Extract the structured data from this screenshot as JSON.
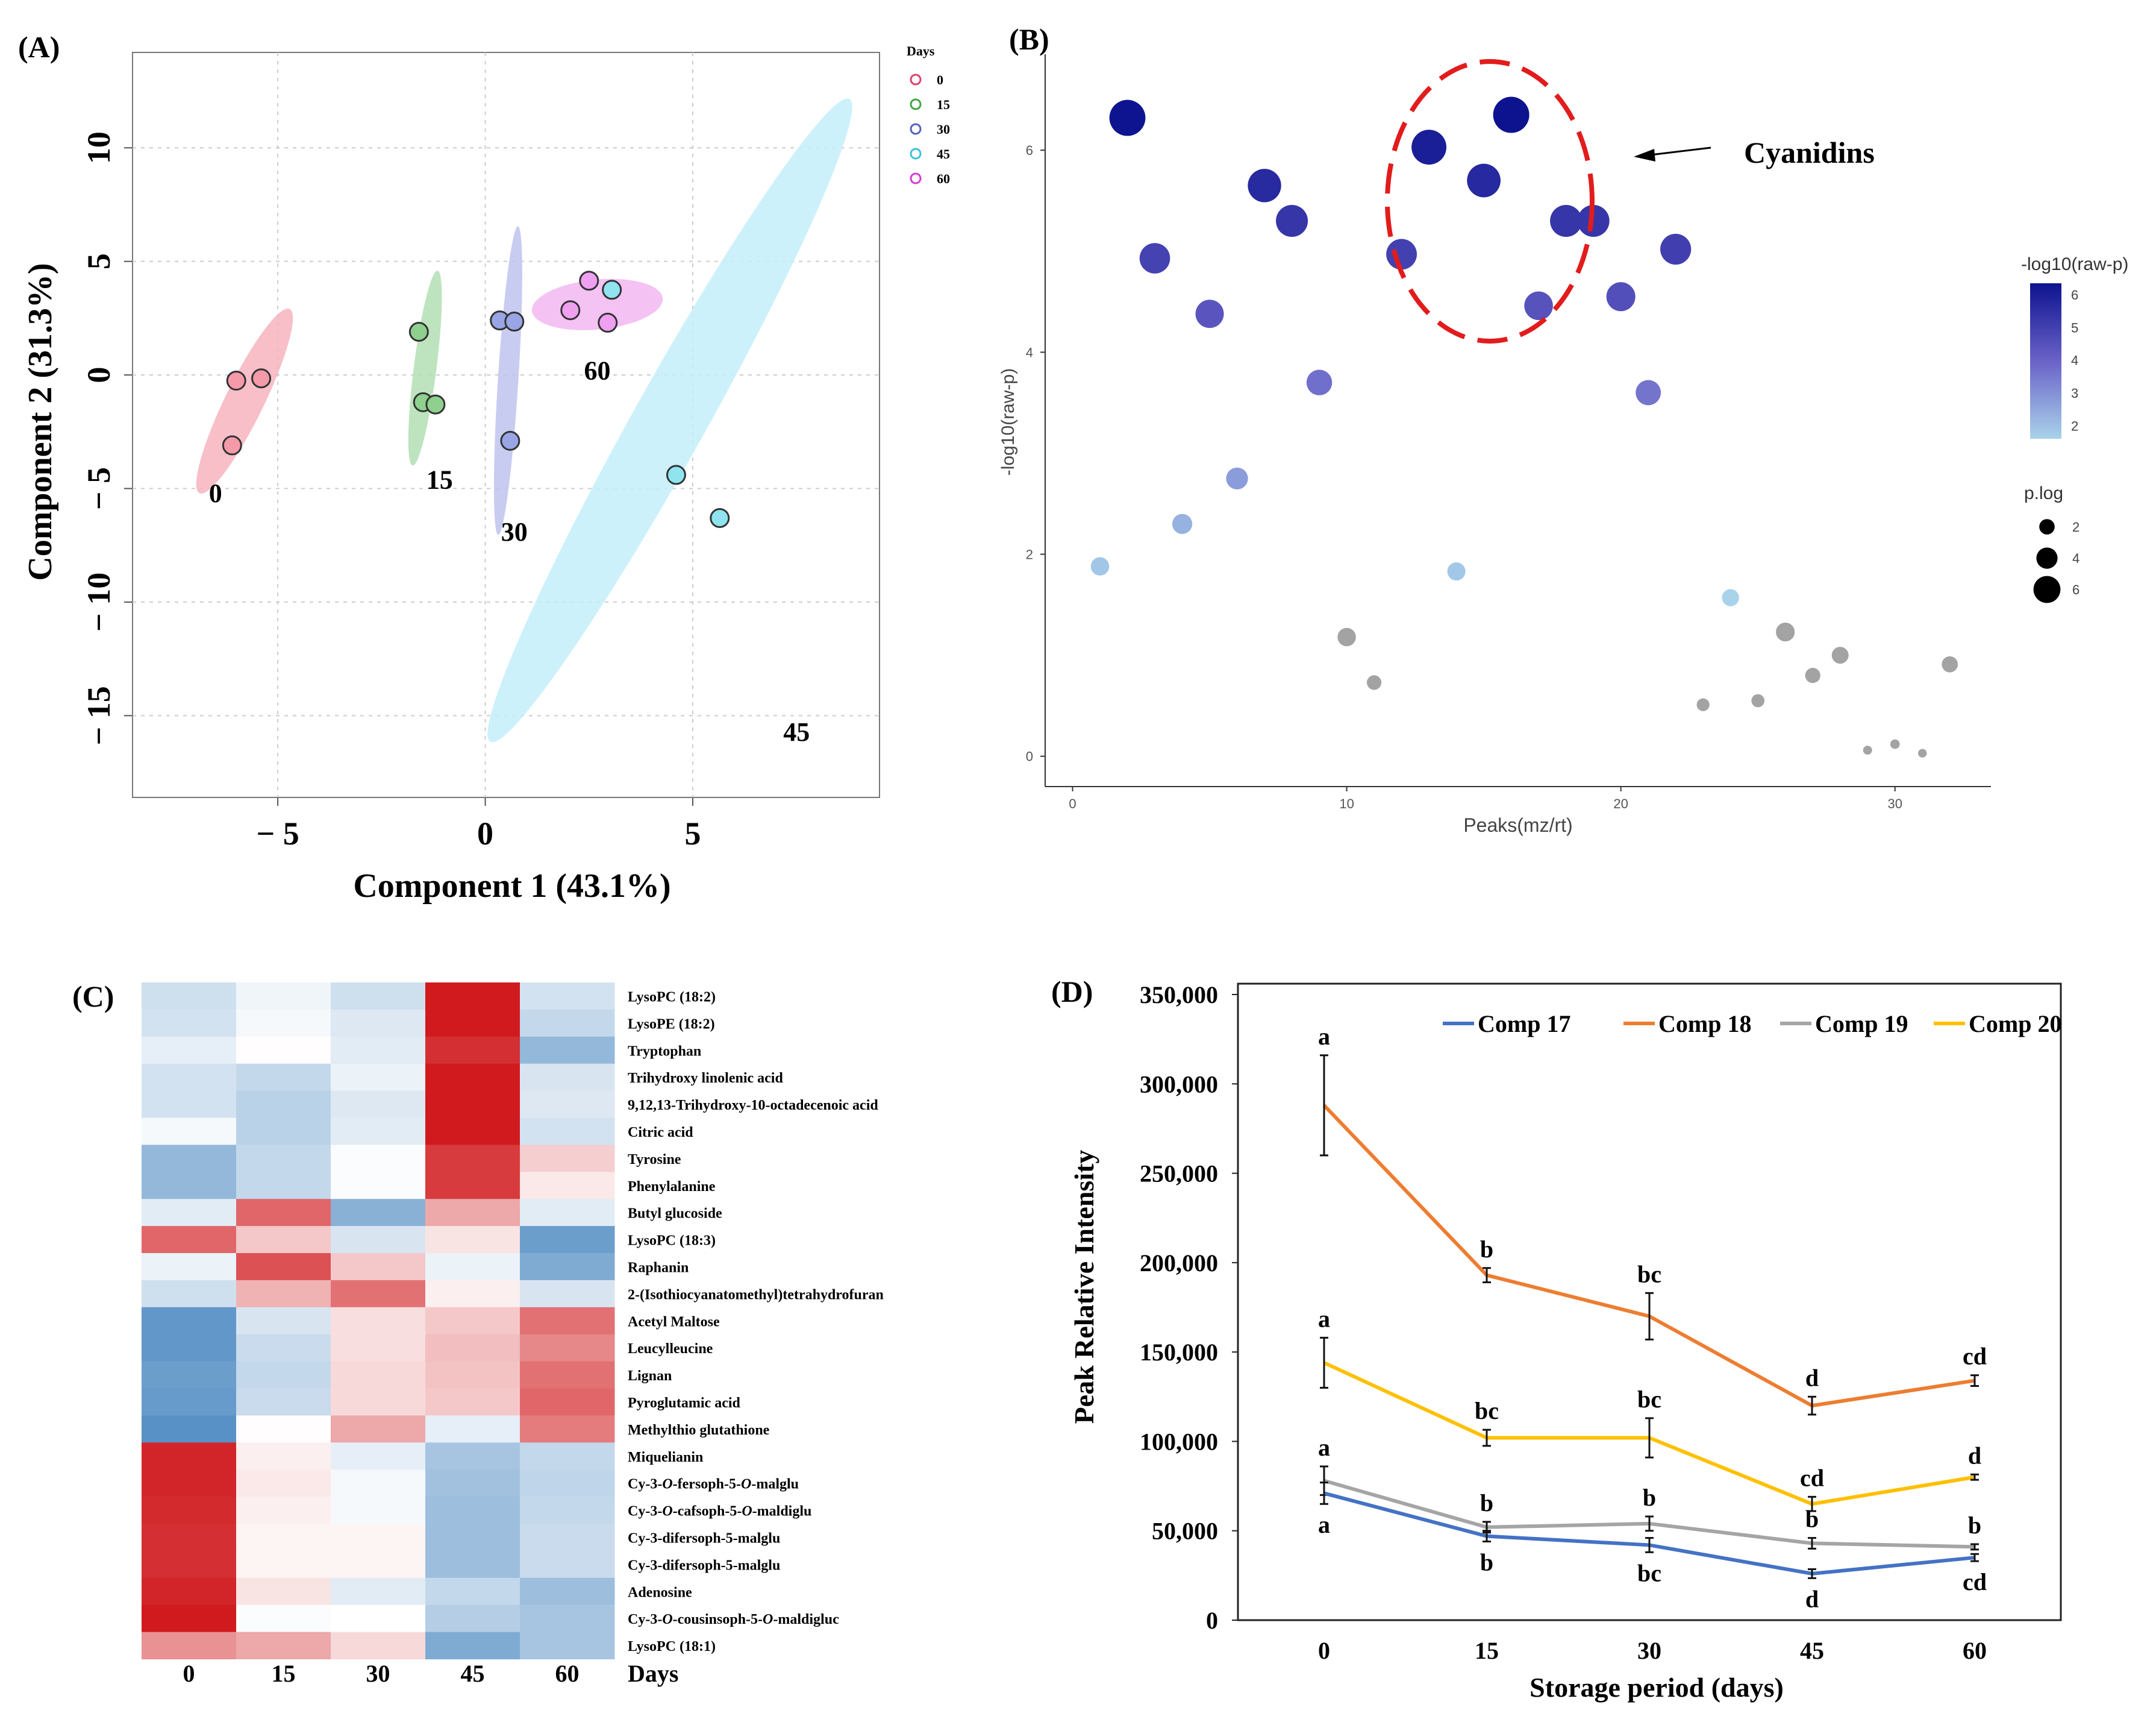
{
  "chart_data": [
    {
      "panel": "(A)",
      "type": "scatter",
      "xlabel": "Component 1 (43.1%)",
      "ylabel": "Component 2 (31.3%)",
      "xlim": [
        -8.5,
        9.5
      ],
      "ylim": [
        -18.6,
        14.2
      ],
      "xticks": [
        -5,
        0,
        5
      ],
      "xtick_labels": [
        "− 5",
        "0",
        "5"
      ],
      "yticks": [
        -15,
        -10,
        -5,
        0,
        5,
        10
      ],
      "ytick_labels": [
        "− 15",
        "− 10",
        "− 5",
        "0",
        "5",
        "10"
      ],
      "legend_title": "Days",
      "groups": [
        {
          "name": "0",
          "label": "0",
          "color": "#e0406a",
          "fill": "#f59aa9",
          "ellipse_fill": "#f7b4c0",
          "points": [
            [
              -6.0,
              -0.25
            ],
            [
              -5.4,
              -0.15
            ],
            [
              -6.1,
              -3.1
            ]
          ],
          "ellipse": {
            "cx": -5.8,
            "cy": -1.15,
            "rx": 4.2,
            "ry": 0.85,
            "angle": 75
          },
          "label_pos": [
            -6.5,
            -5.6
          ]
        },
        {
          "name": "15",
          "label": "15",
          "color": "#3fa648",
          "fill": "#8fd08f",
          "ellipse_fill": "#b3dfb4",
          "points": [
            [
              -1.6,
              1.9
            ],
            [
              -1.5,
              -1.2
            ],
            [
              -1.2,
              -1.3
            ]
          ],
          "ellipse": {
            "cx": -1.45,
            "cy": 0.3,
            "rx": 4.3,
            "ry": 0.5,
            "angle": 86
          },
          "label_pos": [
            -1.1,
            -5.0
          ]
        },
        {
          "name": "30",
          "label": "30",
          "color": "#5560c0",
          "fill": "#9aa5e5",
          "ellipse_fill": "#bfc3ee",
          "points": [
            [
              0.35,
              2.4
            ],
            [
              0.7,
              2.35
            ],
            [
              0.6,
              -2.9
            ]
          ],
          "ellipse": {
            "cx": 0.55,
            "cy": -0.25,
            "rx": 6.8,
            "ry": 0.45,
            "angle": 88
          },
          "label_pos": [
            0.7,
            -7.3
          ]
        },
        {
          "name": "45",
          "label": "45",
          "color": "#3cc2d6",
          "fill": "#8fe4ef",
          "ellipse_fill": "#c4effa",
          "points": [
            [
              3.05,
              3.75
            ],
            [
              4.6,
              -4.4
            ],
            [
              5.65,
              -6.3
            ]
          ],
          "ellipse": {
            "cx": 4.45,
            "cy": -2.0,
            "rx": 14.8,
            "ry": 1.6,
            "angle": 73
          },
          "label_pos": [
            7.5,
            -16.1
          ]
        },
        {
          "name": "60",
          "label": "60",
          "color": "#d63ad6",
          "fill": "#f0a0f0",
          "ellipse_fill": "#f3b7f2",
          "points": [
            [
              2.5,
              4.15
            ],
            [
              2.05,
              2.85
            ],
            [
              2.95,
              2.3
            ]
          ],
          "ellipse": {
            "cx": 2.7,
            "cy": 3.1,
            "rx": 1.6,
            "ry": 1.1,
            "angle": 10
          },
          "label_pos": [
            2.7,
            -0.2
          ]
        }
      ]
    },
    {
      "panel": "(B)",
      "type": "scatter",
      "xlabel": "Peaks(mz/rt)",
      "ylabel": "-log10(raw-p)",
      "xlim": [
        -1,
        33.5
      ],
      "ylim": [
        -0.3,
        6.95
      ],
      "xticks": [
        0,
        10,
        20,
        30
      ],
      "yticks": [
        0,
        2,
        4,
        6
      ],
      "annotation": "Cyanidins",
      "legend_color_title": "-log10(raw-p)",
      "legend_color_ticks": [
        2,
        3,
        4,
        5,
        6
      ],
      "legend_size_title": "p.log",
      "legend_size_values": [
        2,
        4,
        6
      ],
      "points": [
        [
          1,
          1.88
        ],
        [
          2,
          6.32
        ],
        [
          3,
          4.93
        ],
        [
          4,
          2.3
        ],
        [
          5,
          4.38
        ],
        [
          6,
          2.75
        ],
        [
          7,
          5.65
        ],
        [
          8,
          5.3
        ],
        [
          9,
          3.7
        ],
        [
          10,
          1.18
        ],
        [
          11,
          0.73
        ],
        [
          12,
          4.97
        ],
        [
          13,
          6.03
        ],
        [
          14,
          1.83
        ],
        [
          15,
          5.7
        ],
        [
          16,
          6.35
        ],
        [
          17,
          4.46
        ],
        [
          18,
          5.3
        ],
        [
          19,
          5.3
        ],
        [
          20,
          4.55
        ],
        [
          21,
          3.6
        ],
        [
          22,
          5.02
        ],
        [
          23,
          0.51
        ],
        [
          24,
          1.57
        ],
        [
          25,
          0.55
        ],
        [
          26,
          1.23
        ],
        [
          27,
          0.8
        ],
        [
          28,
          1.0
        ],
        [
          29,
          0.06
        ],
        [
          30,
          0.12
        ],
        [
          31,
          0.03
        ],
        [
          32,
          0.91
        ]
      ]
    },
    {
      "panel": "(C)",
      "type": "heatmap",
      "columns": [
        "0",
        "15",
        "30",
        "45",
        "60"
      ],
      "x_axis_label": "Days",
      "rows": [
        "LysoPC (18:2)",
        "LysoPE (18:2)",
        "Tryptophan",
        "Trihydroxy linolenic acid",
        "9,12,13-Trihydroxy-10-octadecenoic acid",
        "Citric acid",
        "Tyrosine",
        "Phenylalanine",
        "Butyl glucoside",
        "LysoPC (18:3)",
        "Raphanin",
        "2-(Isothiocyanatomethyl)tetrahydrofuran",
        "Acetyl Maltose",
        "Leucylleucine",
        "Lignan",
        "Pyroglutamic acid",
        "Methylthio glutathione",
        "Miquelianin",
        "Cy-3-O-fersoph-5-O-malglu",
        "Cy-3-O-cafsoph-5-O-maldiglu",
        "Cy-3-difersoph-5-malglu",
        "Cy-3-difersoph-5-malglu",
        "Adenosine",
        "Cy-3-O-cousinsoph-5-O-maldigluc",
        "LysoPC (18:1)"
      ],
      "row_labels": [
        [
          "LysoPC (18:2)"
        ],
        [
          "LysoPE (18:2)"
        ],
        [
          "Tryptophan"
        ],
        [
          "Trihydroxy linolenic acid"
        ],
        [
          "9,12,13-Trihydroxy-10-octadecenoic acid"
        ],
        [
          "Citric acid"
        ],
        [
          "Tyrosine"
        ],
        [
          "Phenylalanine"
        ],
        [
          "Butyl glucoside"
        ],
        [
          "LysoPC (18:3)"
        ],
        [
          "Raphanin"
        ],
        [
          "2-(Isothiocyanatomethyl)tetrahydrofuran"
        ],
        [
          "Acetyl Maltose"
        ],
        [
          "Leucylleucine"
        ],
        [
          "Lignan"
        ],
        [
          "Pyroglutamic acid"
        ],
        [
          "Methylthio glutathione"
        ],
        [
          "Miquelianin"
        ],
        [
          "Cy-3-",
          "O",
          "-fersoph-5-",
          "O",
          "-malglu"
        ],
        [
          "Cy-3-",
          "O",
          "-cafsoph-5-",
          "O",
          "-maldiglu"
        ],
        [
          "Cy-3-difersoph-5-malglu"
        ],
        [
          "Cy-3-difersoph-5-malglu"
        ],
        [
          "Adenosine"
        ],
        [
          "Cy-3-",
          "O",
          "-cousinsoph-5-",
          "O",
          "-maldigluc"
        ],
        [
          "LysoPC (18:1)"
        ]
      ],
      "values": [
        [
          -0.5,
          -0.15,
          -0.5,
          2.1,
          -0.45
        ],
        [
          -0.45,
          -0.1,
          -0.35,
          2.2,
          -0.6
        ],
        [
          -0.25,
          0.02,
          -0.3,
          1.9,
          -1.1
        ],
        [
          -0.45,
          -0.6,
          -0.2,
          2.2,
          -0.4
        ],
        [
          -0.45,
          -0.7,
          -0.35,
          2.2,
          -0.35
        ],
        [
          -0.1,
          -0.7,
          -0.3,
          2.1,
          -0.45
        ],
        [
          -1.1,
          -0.6,
          -0.05,
          1.8,
          0.45
        ],
        [
          -1.1,
          -0.6,
          -0.05,
          1.8,
          0.2
        ],
        [
          -0.3,
          1.4,
          -1.2,
          0.8,
          -0.3
        ],
        [
          1.4,
          0.5,
          -0.4,
          0.25,
          -1.5
        ],
        [
          -0.2,
          1.6,
          0.5,
          -0.2,
          -1.3
        ],
        [
          -0.5,
          0.7,
          1.3,
          0.15,
          -0.4
        ],
        [
          -1.6,
          -0.4,
          0.3,
          0.5,
          1.3
        ],
        [
          -1.6,
          -0.55,
          0.3,
          0.6,
          1.1
        ],
        [
          -1.5,
          -0.6,
          0.35,
          0.55,
          1.3
        ],
        [
          -1.55,
          -0.55,
          0.35,
          0.5,
          1.4
        ],
        [
          -1.7,
          0.02,
          0.8,
          -0.25,
          1.2
        ],
        [
          2.0,
          0.15,
          -0.25,
          -0.9,
          -0.6
        ],
        [
          2.0,
          0.2,
          -0.1,
          -0.95,
          -0.65
        ],
        [
          1.95,
          0.15,
          -0.1,
          -1.0,
          -0.6
        ],
        [
          1.9,
          0.1,
          0.1,
          -1.0,
          -0.55
        ],
        [
          1.9,
          0.1,
          0.1,
          -1.0,
          -0.55
        ],
        [
          2.0,
          0.25,
          -0.3,
          -0.6,
          -1.0
        ],
        [
          2.1,
          -0.05,
          0.0,
          -0.75,
          -0.9
        ],
        [
          1.0,
          0.8,
          0.35,
          -1.3,
          -0.9
        ]
      ]
    },
    {
      "panel": "(D)",
      "type": "line",
      "xlabel": "Storage period (days)",
      "ylabel": "Peak Relative Intensity",
      "x": [
        "0",
        "15",
        "30",
        "45",
        "60"
      ],
      "ylim": [
        0,
        350000
      ],
      "yticks": [
        0,
        50000,
        100000,
        150000,
        200000,
        250000,
        300000,
        350000
      ],
      "ytick_labels": [
        "0",
        "50,000",
        "100,000",
        "150,000",
        "200,000",
        "250,000",
        "300,000",
        "350,000"
      ],
      "series": [
        {
          "name": "Comp 17",
          "color": "#4472c4",
          "values": [
            71000,
            47000,
            42000,
            26000,
            35000
          ],
          "errors": [
            6000,
            3000,
            4000,
            2500,
            2000
          ],
          "letters": [
            "a",
            "b",
            "bc",
            "d",
            "cd"
          ],
          "letter_side": "below"
        },
        {
          "name": "Comp 18",
          "color": "#ed7d31",
          "values": [
            288000,
            193000,
            170000,
            120000,
            134000
          ],
          "errors": [
            28000,
            4000,
            13000,
            5000,
            3000
          ],
          "letters": [
            "a",
            "b",
            "bc",
            "d",
            "cd"
          ],
          "letter_side": "above"
        },
        {
          "name": "Comp 19",
          "color": "#a5a5a5",
          "values": [
            78000,
            52000,
            54000,
            43000,
            41000
          ],
          "errors": [
            8000,
            3000,
            4000,
            3000,
            1500
          ],
          "letters": [
            "a",
            "b",
            "b",
            "b",
            "b"
          ],
          "letter_side": "above"
        },
        {
          "name": "Comp 20",
          "color": "#ffc000",
          "values": [
            144000,
            102000,
            102000,
            65000,
            80000
          ],
          "errors": [
            14000,
            4500,
            11000,
            4000,
            1500
          ],
          "letters": [
            "a",
            "bc",
            "bc",
            "cd",
            "d"
          ],
          "letter_side": "above"
        }
      ]
    }
  ]
}
